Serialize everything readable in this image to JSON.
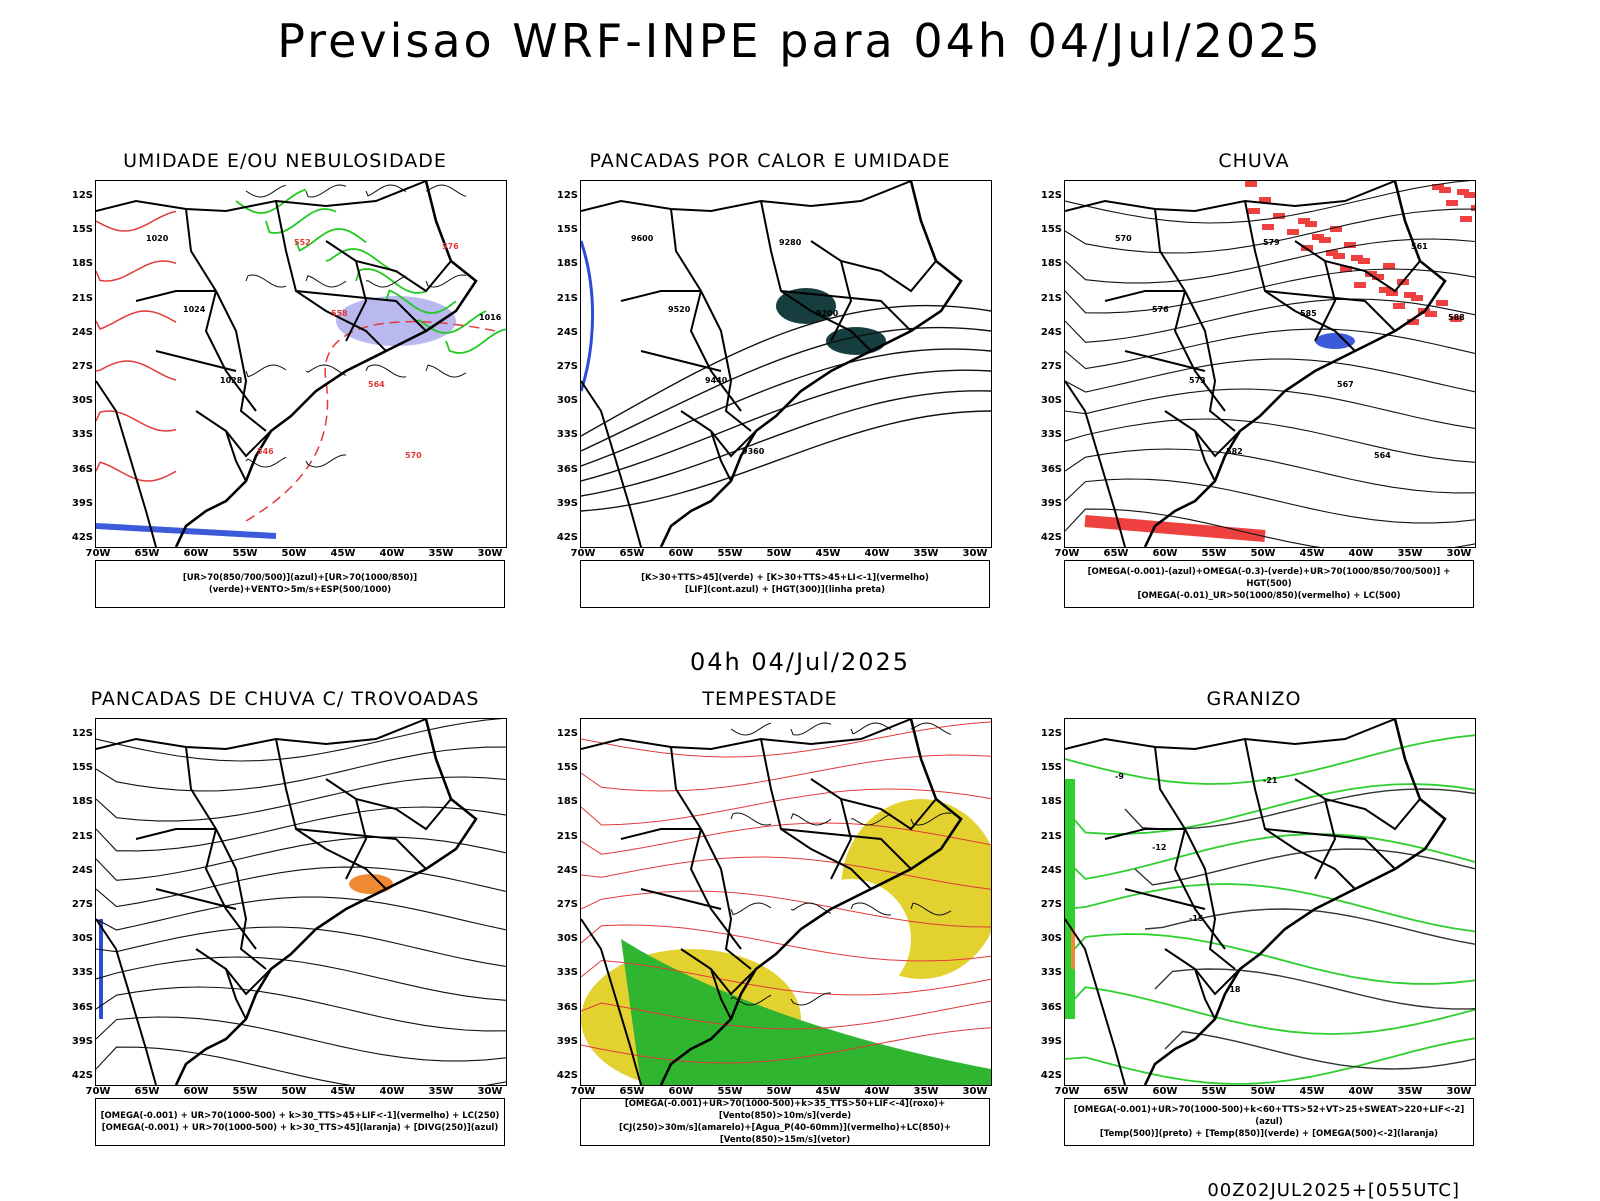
{
  "title": "Previsao WRF-INPE  para 04h 04/Jul/2025",
  "subtitle": "04h 04/Jul/2025",
  "footer": "00Z02JUL2025+[055UTC]",
  "axes": {
    "lat": [
      "12S",
      "15S",
      "18S",
      "21S",
      "24S",
      "27S",
      "30S",
      "33S",
      "36S",
      "39S",
      "42S"
    ],
    "lon": [
      "70W",
      "65W",
      "60W",
      "55W",
      "50W",
      "45W",
      "40W",
      "35W",
      "30W"
    ]
  },
  "panels": [
    {
      "title": "UMIDADE E/OU NEBULOSIDADE",
      "legend": [
        "[UR>70(850/700/500)](azul)+[UR>70(1000/850)](verde)+VENTO>5m/s+ESP(500/1000)"
      ],
      "labels": [
        "1020",
        "1024",
        "1028",
        "546",
        "552",
        "558",
        "564",
        "570",
        "576",
        "1016"
      ]
    },
    {
      "title": "PANCADAS POR CALOR E UMIDADE",
      "legend": [
        "[K>30+TTS>45](verde) + [K>30+TTS>45+LI<-1](vermelho)",
        "[LIF](cont.azul) + [HGT(300)](linha preta)"
      ],
      "labels": [
        "9600",
        "9520",
        "9440",
        "9360",
        "9280",
        "9200"
      ]
    },
    {
      "title": "CHUVA",
      "legend": [
        "[OMEGA(-0.001)-(azul)+OMEGA(-0.3)-(verde)+UR>70(1000/850/700/500)] + HGT(500)",
        "[OMEGA(-0.01)_UR>50(1000/850)(vermelho) + LC(500)"
      ],
      "labels": [
        "570",
        "576",
        "573",
        "582",
        "579",
        "585",
        "567",
        "564",
        "561",
        "588"
      ]
    },
    {
      "title": "PANCADAS DE CHUVA C/ TROVOADAS",
      "legend": [
        "[OMEGA(-0.001) + UR>70(1000-500) + k>30_TTS>45+LIF<-1](vermelho) + LC(250)",
        "[OMEGA(-0.001) + UR>70(1000-500) + k>30_TTS>45](laranja) + [DIVG(250)](azul)"
      ],
      "labels": []
    },
    {
      "title": "TEMPESTADE",
      "legend": [
        "[OMEGA(-0.001)+UR>70(1000-500)+k>35_TTS>50+LIF<-4](roxo)+[Vento(850)>10m/s](verde)",
        "[CJ(250)>30m/s](amarelo)+[Agua_P(40-60mm)](vermelho)+LC(850)+[Vento(850)>15m/s](vetor)"
      ],
      "labels": []
    },
    {
      "title": "GRANIZO",
      "legend": [
        "[OMEGA(-0.001)+UR>70(1000-500)+k<60+TTS>52+VT>25+SWEAT>220+LIF<-2](azul)",
        "[Temp(500)](preto) + [Temp(850)](verde) + [OMEGA(500)<-2](laranja)"
      ],
      "labels": [
        "-9",
        "-12",
        "-15",
        "-18",
        "-21"
      ]
    }
  ],
  "chart_data": {
    "type": "map",
    "title": "Previsao WRF-INPE  para 04h 04/Jul/2025",
    "lat_range": [
      "12S",
      "42S"
    ],
    "lon_range": [
      "70W",
      "30W"
    ],
    "panels": [
      "UMIDADE E/OU NEBULOSIDADE",
      "PANCADAS POR CALOR E UMIDADE",
      "CHUVA",
      "PANCADAS DE CHUVA C/ TROVOADAS",
      "TEMPESTADE",
      "GRANIZO"
    ]
  }
}
